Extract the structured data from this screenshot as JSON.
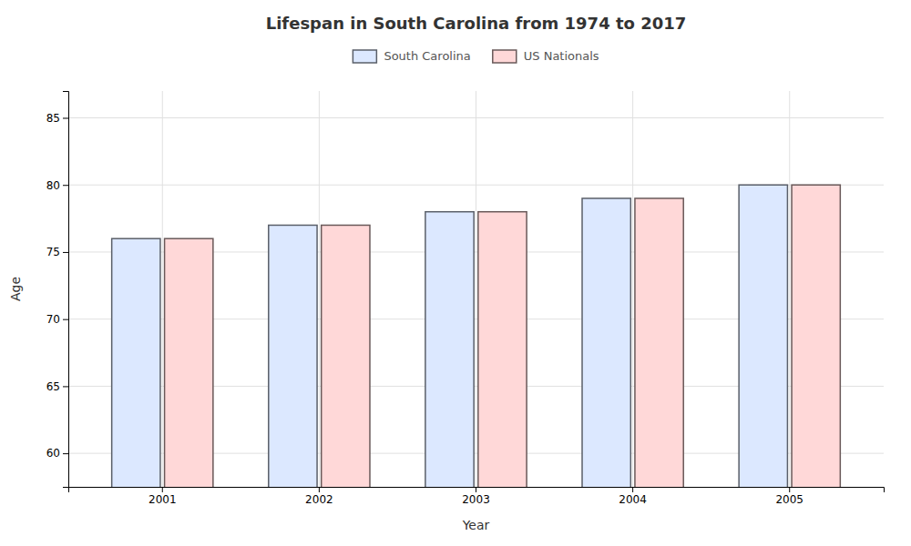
{
  "chart_data": {
    "type": "bar",
    "title": "Lifespan in South Carolina from 1974 to 2017",
    "xlabel": "Year",
    "ylabel": "Age",
    "categories": [
      "2001",
      "2002",
      "2003",
      "2004",
      "2005"
    ],
    "series": [
      {
        "name": "South Carolina",
        "color": "#dce8ff",
        "values": [
          76.0,
          77.0,
          78.0,
          79.0,
          80.0
        ]
      },
      {
        "name": "US Nationals",
        "color": "#ffd8d8",
        "values": [
          76.0,
          77.0,
          78.0,
          79.0,
          80.0
        ]
      }
    ],
    "ylim": [
      57.5,
      87
    ],
    "yticks": [
      60,
      65,
      70,
      75,
      80,
      85
    ],
    "grid": true,
    "legend": "upper center"
  }
}
